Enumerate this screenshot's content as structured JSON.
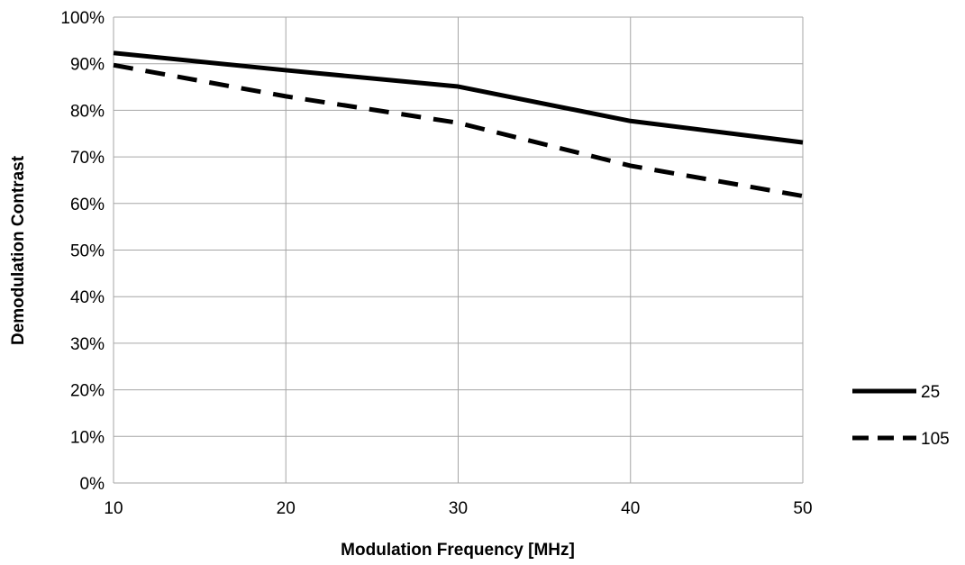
{
  "chart_data": {
    "type": "line",
    "title": "",
    "xlabel": "Modulation Frequency [MHz]",
    "ylabel": "Demodulation Contrast",
    "x": [
      10,
      20,
      30,
      40,
      50
    ],
    "xlim": [
      10,
      50
    ],
    "ylim": [
      0,
      100
    ],
    "x_ticks": [
      "10",
      "20",
      "30",
      "40",
      "50"
    ],
    "y_ticks": [
      "0%",
      "10%",
      "20%",
      "30%",
      "40%",
      "50%",
      "60%",
      "70%",
      "80%",
      "90%",
      "100%"
    ],
    "grid": true,
    "legend_position": "right",
    "series": [
      {
        "name": "25",
        "values": [
          92.3,
          88.6,
          85.1,
          77.7,
          73.1
        ],
        "style": "solid",
        "color": "#000000"
      },
      {
        "name": "105",
        "values": [
          89.7,
          83.0,
          77.3,
          68.1,
          61.6
        ],
        "style": "dashed",
        "color": "#000000"
      }
    ]
  }
}
